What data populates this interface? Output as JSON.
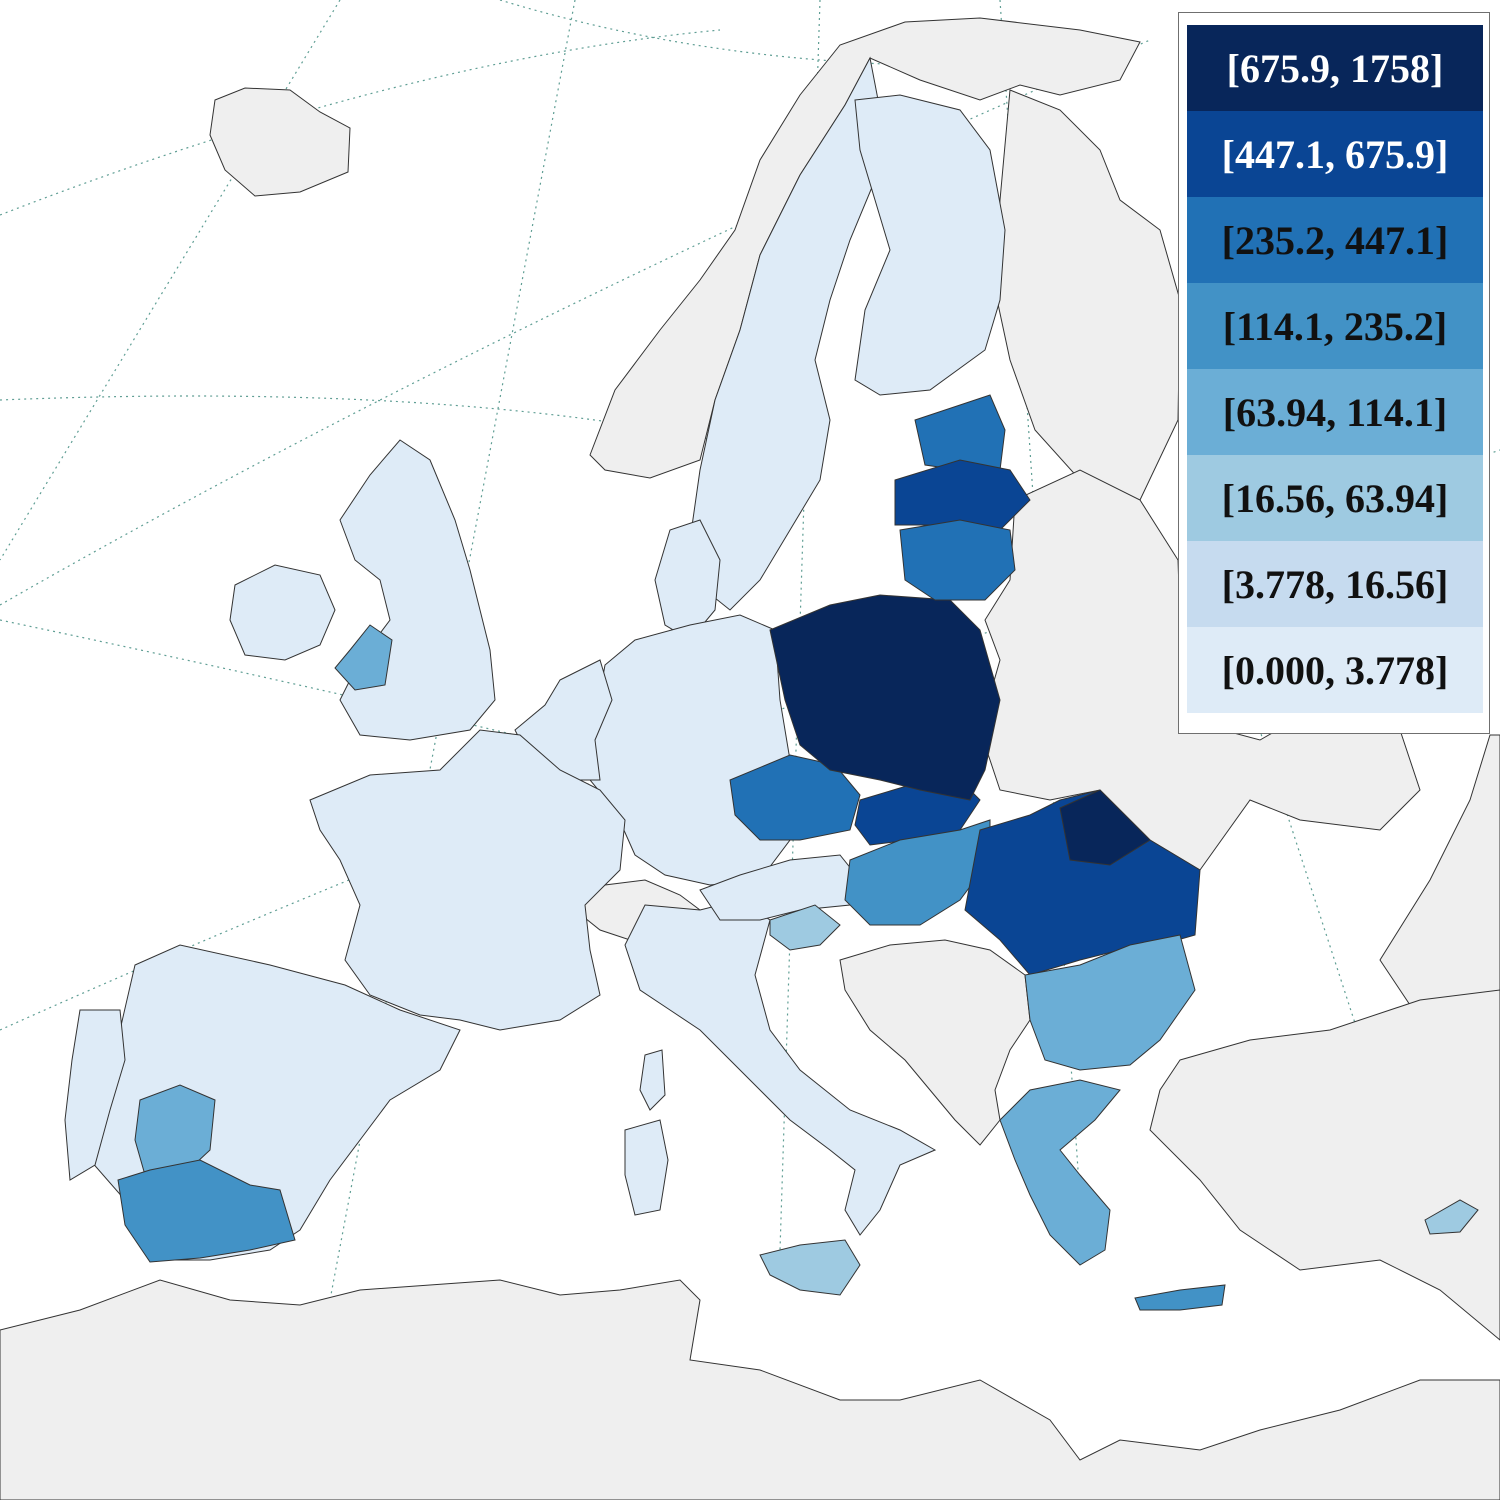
{
  "map": {
    "colors": {
      "sea": "#ffffff",
      "non_eu_land": "#efefef",
      "border": "#333333",
      "graticule": "#5f9e94"
    }
  },
  "legend": {
    "classes": [
      {
        "label": "[675.9, 1758]",
        "color": "#08265a",
        "text_color": "#ffffff"
      },
      {
        "label": "[447.1, 675.9]",
        "color": "#0a4594",
        "text_color": "#ffffff"
      },
      {
        "label": "[235.2, 447.1]",
        "color": "#2171b5",
        "text_color": "#111111"
      },
      {
        "label": "[114.1, 235.2]",
        "color": "#4292c6",
        "text_color": "#111111"
      },
      {
        "label": "[63.94, 114.1]",
        "color": "#6baed6",
        "text_color": "#111111"
      },
      {
        "label": "[16.56, 63.94]",
        "color": "#9ecae1",
        "text_color": "#111111"
      },
      {
        "label": "[3.778, 16.56]",
        "color": "#c6dbef",
        "text_color": "#111111"
      },
      {
        "label": "[0.000, 3.778]",
        "color": "#deebf7",
        "text_color": "#111111"
      }
    ]
  },
  "regions": [
    {
      "name": "iceland",
      "class": "none"
    },
    {
      "name": "norway",
      "class": "none"
    },
    {
      "name": "sweden",
      "class": 7
    },
    {
      "name": "finland",
      "class": 7
    },
    {
      "name": "ireland",
      "class": 7
    },
    {
      "name": "united-kingdom",
      "class": 7
    },
    {
      "name": "wales",
      "class": 4
    },
    {
      "name": "denmark",
      "class": 7
    },
    {
      "name": "estonia",
      "class": 2
    },
    {
      "name": "latvia",
      "class": 1
    },
    {
      "name": "lithuania",
      "class": 2
    },
    {
      "name": "poland",
      "class": 0
    },
    {
      "name": "germany",
      "class": 7
    },
    {
      "name": "netherlands-belgium",
      "class": 7
    },
    {
      "name": "france",
      "class": 7
    },
    {
      "name": "spain",
      "class": 7
    },
    {
      "name": "portugal",
      "class": 7
    },
    {
      "name": "andalusia",
      "class": 3
    },
    {
      "name": "extremadura",
      "class": 4
    },
    {
      "name": "switzerland",
      "class": "none"
    },
    {
      "name": "italy",
      "class": 7
    },
    {
      "name": "sicily",
      "class": 5
    },
    {
      "name": "czechia",
      "class": 2
    },
    {
      "name": "slovakia",
      "class": 1
    },
    {
      "name": "austria",
      "class": 7
    },
    {
      "name": "hungary",
      "class": 3
    },
    {
      "name": "slovenia",
      "class": 5
    },
    {
      "name": "romania",
      "class": 1
    },
    {
      "name": "bulgaria",
      "class": 4
    },
    {
      "name": "greece",
      "class": 4
    },
    {
      "name": "crete",
      "class": 3
    },
    {
      "name": "cyprus",
      "class": 5
    },
    {
      "name": "balkans",
      "class": "none"
    },
    {
      "name": "belarus-ukraine",
      "class": "none"
    },
    {
      "name": "turkey",
      "class": "none"
    },
    {
      "name": "north-africa",
      "class": "none"
    }
  ]
}
